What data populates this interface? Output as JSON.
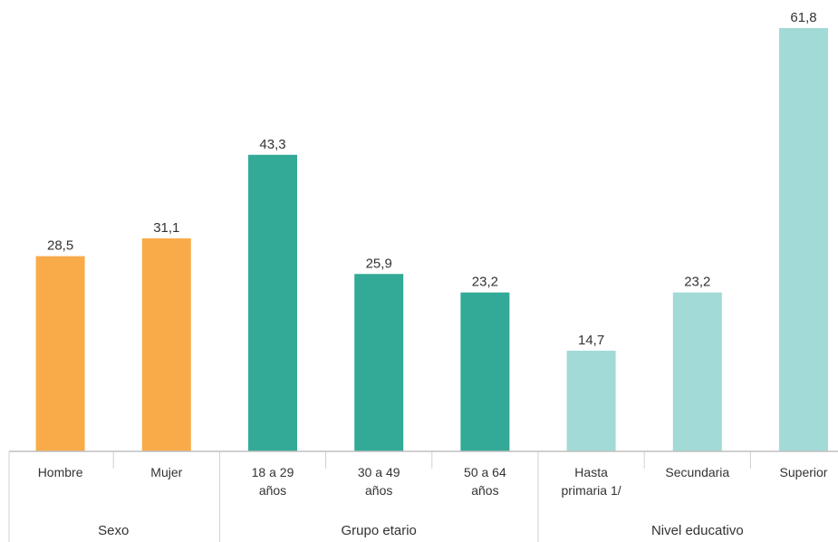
{
  "chart_data": {
    "type": "bar",
    "title": "",
    "xlabel": "",
    "ylabel": "",
    "ylim": [
      0,
      61.8
    ],
    "grid": false,
    "legend": "none",
    "groups": [
      {
        "name": "Sexo",
        "color": "#F9AB4A",
        "categories": [
          {
            "label": [
              "Hombre"
            ],
            "value": 28.5,
            "value_label": "28,5"
          },
          {
            "label": [
              "Mujer"
            ],
            "value": 31.1,
            "value_label": "31,1"
          }
        ]
      },
      {
        "name": "Grupo etario",
        "color": "#33A997",
        "categories": [
          {
            "label": [
              "18 a 29",
              "años"
            ],
            "value": 43.3,
            "value_label": "43,3"
          },
          {
            "label": [
              "30 a 49",
              "años"
            ],
            "value": 25.9,
            "value_label": "25,9"
          },
          {
            "label": [
              "50 a 64",
              "años"
            ],
            "value": 23.2,
            "value_label": "23,2"
          }
        ]
      },
      {
        "name": "Nivel educativo",
        "color": "#A1DAD6",
        "categories": [
          {
            "label": [
              "Hasta",
              "primaria 1/"
            ],
            "value": 14.7,
            "value_label": "14,7"
          },
          {
            "label": [
              "Secundaria"
            ],
            "value": 23.2,
            "value_label": "23,2"
          },
          {
            "label": [
              "Superior"
            ],
            "value": 61.8,
            "value_label": "61,8"
          }
        ]
      }
    ]
  }
}
